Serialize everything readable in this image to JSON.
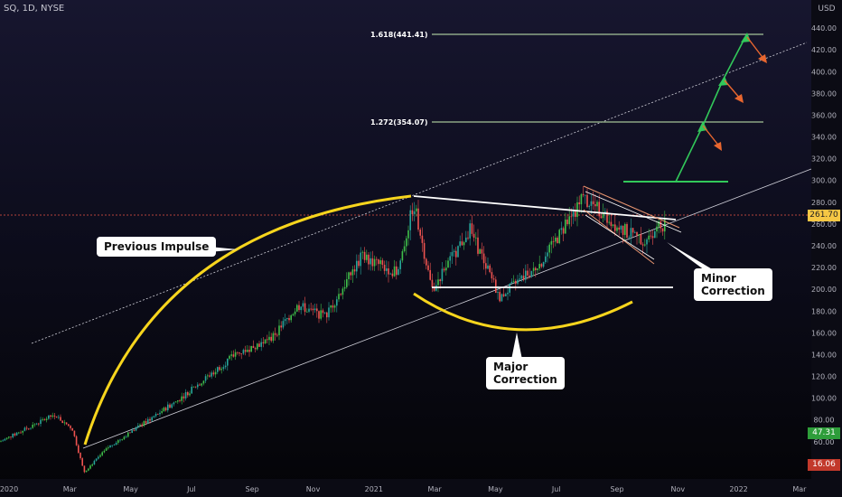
{
  "header": {
    "symbol": "SQ, 1D, NYSE",
    "currency": "USD"
  },
  "chart_data": {
    "type": "candlestick",
    "x_ticks": [
      "2020",
      "Mar",
      "May",
      "Jul",
      "Sep",
      "Nov",
      "2021",
      "Mar",
      "May",
      "Jul",
      "Sep",
      "Nov",
      "2022",
      "Mar"
    ],
    "y_ticks": [
      40,
      60,
      80,
      100,
      120,
      140,
      160,
      180,
      200,
      220,
      240,
      260,
      280,
      300,
      320,
      340,
      360,
      380,
      400,
      420,
      440
    ],
    "ylim": [
      20,
      460
    ],
    "fib_levels": [
      {
        "label": "1.618(441.41)",
        "value": 441.41
      },
      {
        "label": "1.272(354.07)",
        "value": 354.07
      }
    ],
    "price_tags": {
      "current": "261.70",
      "green": "47.31",
      "red": "16.06"
    },
    "annotations": {
      "previous_impulse": "Previous Impulse",
      "major_correction": "Major\nCorrection",
      "minor_correction": "Minor\nCorrection"
    },
    "key_points": [
      {
        "date": "2020-03-18",
        "price": 32
      },
      {
        "date": "2021-02-16",
        "price": 283
      },
      {
        "date": "2021-05-12",
        "price": 193
      },
      {
        "date": "2021-08-05",
        "price": 289
      },
      {
        "date": "2021-10-25",
        "price": 262
      }
    ],
    "colors": {
      "up": "#26a69a",
      "up_alt": "#3fbf4a",
      "down": "#ef5350",
      "fib_line": "#c8f0b4",
      "arc": "#f7d51d",
      "arrow_up": "#32c85a",
      "arrow_down": "#e8662f",
      "channel": "#ffffff"
    }
  }
}
